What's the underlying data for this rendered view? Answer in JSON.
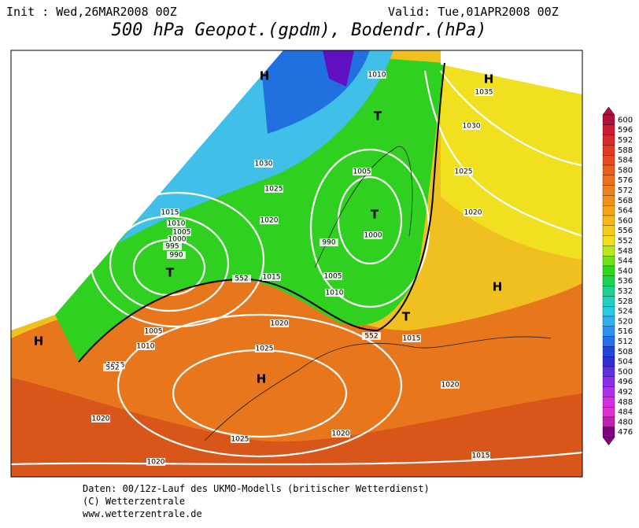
{
  "header": {
    "init": "Init : Wed,26MAR2008 00Z",
    "valid": "Valid: Tue,01APR2008 00Z",
    "title": "500 hPa Geopot.(gpdm), Bodendr.(hPa)"
  },
  "map": {
    "isobar_labels": [
      "1010",
      "1035",
      "1030",
      "1025",
      "1020",
      "1030",
      "1025",
      "1020",
      "1015",
      "1010",
      "1005",
      "1000",
      "995",
      "990",
      "1005",
      "990",
      "1000",
      "1005",
      "1010",
      "1015",
      "1020",
      "1025",
      "1020",
      "1015",
      "1010",
      "1005",
      "1015",
      "1020",
      "1025",
      "1020",
      "1015",
      "1020",
      "552",
      "552",
      "552"
    ],
    "centers": [
      "H",
      "T",
      "H",
      "T",
      "T",
      "H",
      "T",
      "H",
      "H"
    ]
  },
  "colorbar": {
    "labels": [
      "600",
      "596",
      "592",
      "588",
      "584",
      "580",
      "576",
      "572",
      "568",
      "564",
      "560",
      "556",
      "552",
      "548",
      "544",
      "540",
      "536",
      "532",
      "528",
      "524",
      "520",
      "516",
      "512",
      "508",
      "504",
      "500",
      "496",
      "492",
      "488",
      "484",
      "480",
      "476"
    ]
  },
  "footer": [
    "Daten: 00/12z-Lauf des UKMO-Modells (britischer Wetterdienst)",
    "(C) Wetterzentrale",
    "www.wetterzentrale.de"
  ]
}
